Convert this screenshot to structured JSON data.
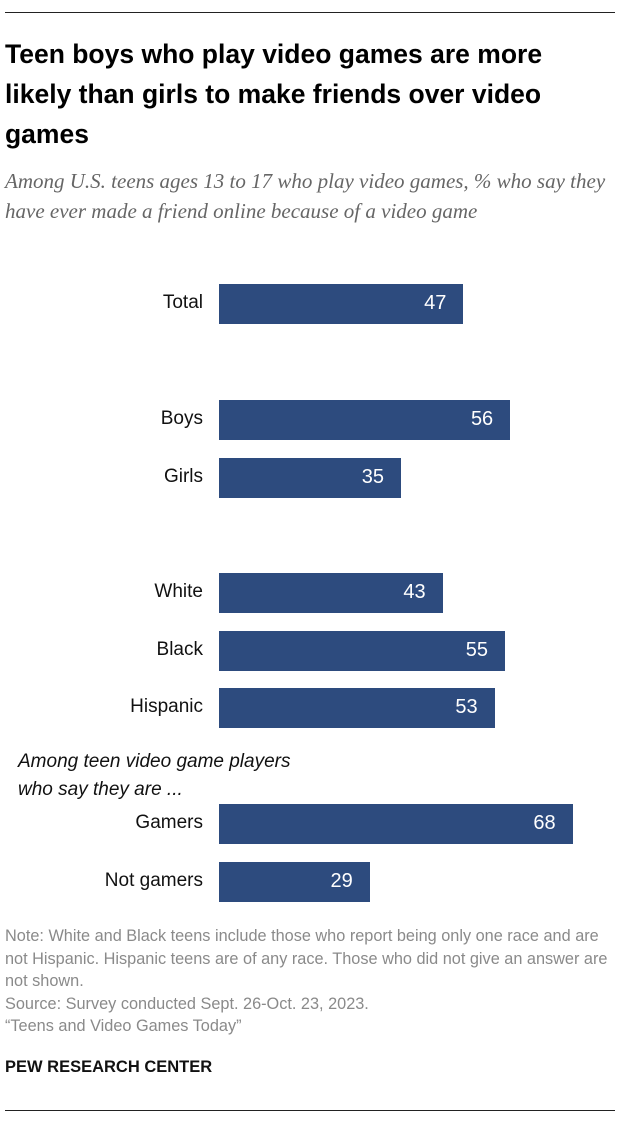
{
  "chart_data": {
    "type": "bar",
    "orientation": "horizontal",
    "title": "Teen boys who play video games are more likely than girls to make friends over video games",
    "subtitle": "Among U.S. teens ages 13 to 17 who play video games, % who say they have ever made a friend online because of a video game",
    "categories": [
      "Total",
      "Boys",
      "Girls",
      "White",
      "Black",
      "Hispanic",
      "Gamers",
      "Not gamers"
    ],
    "values": [
      47,
      56,
      35,
      43,
      55,
      53,
      68,
      29
    ],
    "color": "#2d4b7e",
    "annotation": "Among teen video game players who say they are ...",
    "note": "Note: White and Black teens include those who report being only one race and are not Hispanic. Hispanic teens are of any race. Those who did not give an answer are not shown.",
    "source": [
      "Source: Survey conducted Sept. 26-Oct. 23, 2023.",
      "“Teens and Video Games Today”"
    ],
    "footer": "PEW RESEARCH CENTER"
  }
}
